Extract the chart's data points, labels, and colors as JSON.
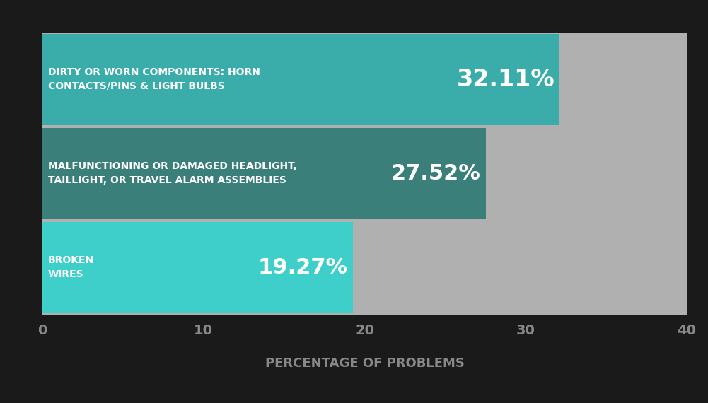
{
  "categories": [
    "BROKEN\nWIRES",
    "MALFUNCTIONING OR DAMAGED HEADLIGHT,\nTAILLIGHT, OR TRAVEL ALARM ASSEMBLIES",
    "DIRTY OR WORN COMPONENTS: HORN\nCONTACTS/PINS & LIGHT BULBS"
  ],
  "values": [
    19.27,
    27.52,
    32.11
  ],
  "labels": [
    "19.27%",
    "27.52%",
    "32.11%"
  ],
  "bar_color_0": "#3ecfca",
  "bar_color_1": "#3a7f7a",
  "bar_color_2": "#3aadaa",
  "background_color": "#1a1a1a",
  "plot_bg_color": "#1a1a1a",
  "chart_area_color": "#b0b0b0",
  "xlabel": "PERCENTAGE OF PROBLEMS",
  "xlim": [
    0,
    40
  ],
  "xticks": [
    0,
    10,
    20,
    30,
    40
  ],
  "text_color": "#ffffff",
  "xlabel_color": "#888888",
  "tick_color": "#888888"
}
